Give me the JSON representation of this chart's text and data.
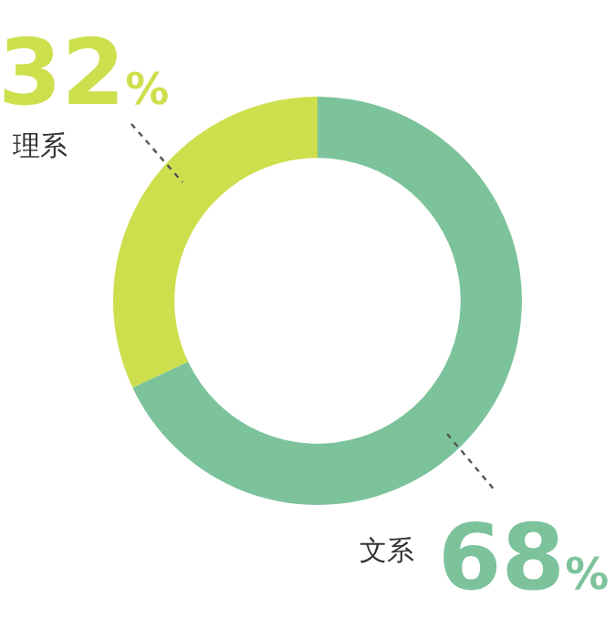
{
  "chart_data": {
    "type": "donut",
    "categories": [
      "文系",
      "理系"
    ],
    "values": [
      68,
      32
    ],
    "colors": [
      "#7cc39b",
      "#cddf4c"
    ],
    "value_labels": [
      "68%",
      "32%"
    ],
    "legend": false
  }
}
